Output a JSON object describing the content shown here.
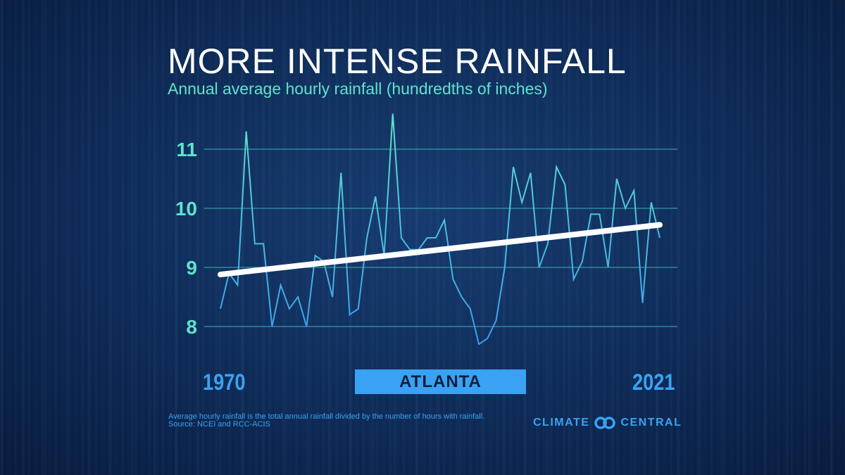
{
  "chart_data": {
    "type": "line",
    "title": "MORE INTENSE RAINFALL",
    "subtitle": "Annual average hourly rainfall (hundredths of inches)",
    "x_start_label": "1970",
    "x_end_label": "2021",
    "location_label": "ATLANTA",
    "ylim": [
      7.6,
      11.7
    ],
    "yticks": [
      8,
      9,
      10,
      11
    ],
    "grid": true,
    "x": [
      1970,
      1971,
      1972,
      1973,
      1974,
      1975,
      1976,
      1977,
      1978,
      1979,
      1980,
      1981,
      1982,
      1983,
      1984,
      1985,
      1986,
      1987,
      1988,
      1989,
      1990,
      1991,
      1992,
      1993,
      1994,
      1995,
      1996,
      1997,
      1998,
      1999,
      2000,
      2001,
      2002,
      2003,
      2004,
      2005,
      2006,
      2007,
      2008,
      2009,
      2010,
      2011,
      2012,
      2013,
      2014,
      2015,
      2016,
      2017,
      2018,
      2019,
      2020,
      2021
    ],
    "series": [
      {
        "values": [
          8.3,
          8.9,
          8.7,
          11.3,
          9.4,
          9.4,
          8.0,
          8.7,
          8.3,
          8.5,
          8.0,
          9.2,
          9.1,
          8.5,
          10.6,
          8.2,
          8.3,
          9.5,
          10.2,
          9.2,
          11.6,
          9.5,
          9.3,
          9.3,
          9.5,
          9.5,
          9.8,
          8.8,
          8.5,
          8.3,
          7.7,
          7.8,
          8.1,
          9.0,
          10.7,
          10.1,
          10.6,
          9.0,
          9.4,
          10.7,
          10.4,
          8.8,
          9.1,
          9.9,
          9.9,
          9.0,
          10.5,
          10.0,
          10.3,
          8.4,
          10.1,
          9.5
        ],
        "color": "#3aa8ee"
      }
    ],
    "trend": {
      "x": [
        1970,
        2021
      ],
      "values": [
        8.88,
        9.72
      ],
      "color": "#ffffff"
    }
  },
  "footnote": {
    "line1": "Average hourly rainfall is the total annual rainfall divided by the number of hours with rainfall.",
    "line2": "Source: NCEI and RCC-ACIS"
  },
  "logo": {
    "left": "CLIMATE",
    "right": "CENTRAL"
  },
  "colors": {
    "grid": "#3fb5b0",
    "tick": "#5fe3cc",
    "accent": "#39a2f2"
  }
}
